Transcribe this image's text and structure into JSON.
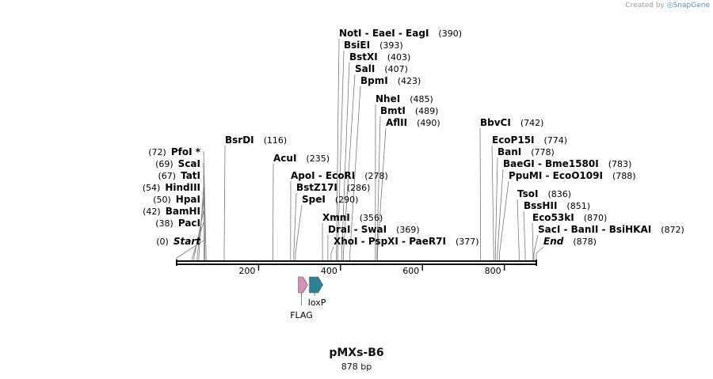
{
  "credit": {
    "prefix": "Created by",
    "brand": "SnapGene"
  },
  "plasmid": {
    "name": "pMXs-B6",
    "size_label": "878 bp",
    "length": 878
  },
  "ticks": [
    {
      "value": 200,
      "label": "200"
    },
    {
      "value": 400,
      "label": "400"
    },
    {
      "value": 600,
      "label": "600"
    },
    {
      "value": 800,
      "label": "800"
    }
  ],
  "sites": [
    {
      "label": "NotI  -  EaeI  -  EagI",
      "position": 390,
      "pos_label": "(390)",
      "italic": false
    },
    {
      "label": "BsiEI",
      "position": 393,
      "pos_label": "(393)",
      "italic": false
    },
    {
      "label": "BstXI",
      "position": 403,
      "pos_label": "(403)",
      "italic": false
    },
    {
      "label": "SalI",
      "position": 407,
      "pos_label": "(407)",
      "italic": false
    },
    {
      "label": "BpmI",
      "position": 423,
      "pos_label": "(423)",
      "italic": false
    },
    {
      "label": "NheI",
      "position": 485,
      "pos_label": "(485)",
      "italic": false
    },
    {
      "label": "BmtI",
      "position": 489,
      "pos_label": "(489)",
      "italic": false
    },
    {
      "label": "AflII",
      "position": 490,
      "pos_label": "(490)",
      "italic": false
    },
    {
      "label": "BsrDI",
      "position": 116,
      "pos_label": "(116)",
      "italic": false
    },
    {
      "label": "AcuI",
      "position": 235,
      "pos_label": "(235)",
      "italic": false
    },
    {
      "label": "ApoI  -  EcoRI",
      "position": 278,
      "pos_label": "(278)",
      "italic": false
    },
    {
      "label": "BstZ17I",
      "position": 286,
      "pos_label": "(286)",
      "italic": false
    },
    {
      "label": "SpeI",
      "position": 290,
      "pos_label": "(290)",
      "italic": false
    },
    {
      "label": "XmnI",
      "position": 356,
      "pos_label": "(356)",
      "italic": false
    },
    {
      "label": "DraI  -  SwaI",
      "position": 369,
      "pos_label": "(369)",
      "italic": false
    },
    {
      "label": "XhoI  -  PspXI  -  PaeR7I",
      "position": 377,
      "pos_label": "(377)",
      "italic": false
    },
    {
      "label": "PfoI *",
      "position": 72,
      "pos_label": "(72)",
      "italic": false
    },
    {
      "label": "ScaI",
      "position": 69,
      "pos_label": "(69)",
      "italic": false
    },
    {
      "label": "TatI",
      "position": 67,
      "pos_label": "(67)",
      "italic": false
    },
    {
      "label": "HindIII",
      "position": 54,
      "pos_label": "(54)",
      "italic": false
    },
    {
      "label": "HpaI",
      "position": 50,
      "pos_label": "(50)",
      "italic": false
    },
    {
      "label": "BamHI",
      "position": 42,
      "pos_label": "(42)",
      "italic": false
    },
    {
      "label": "PacI",
      "position": 38,
      "pos_label": "(38)",
      "italic": false
    },
    {
      "label": "Start",
      "position": 0,
      "pos_label": "(0)",
      "italic": true
    },
    {
      "label": "BbvCI",
      "position": 742,
      "pos_label": "(742)",
      "italic": false
    },
    {
      "label": "EcoP15I",
      "position": 774,
      "pos_label": "(774)",
      "italic": false
    },
    {
      "label": "BanI",
      "position": 778,
      "pos_label": "(778)",
      "italic": false
    },
    {
      "label": "BaeGI  -  Bme1580I",
      "position": 783,
      "pos_label": "(783)",
      "italic": false
    },
    {
      "label": "PpuMI  -  EcoO109I",
      "position": 788,
      "pos_label": "(788)",
      "italic": false
    },
    {
      "label": "TsoI",
      "position": 836,
      "pos_label": "(836)",
      "italic": false
    },
    {
      "label": "BssHII",
      "position": 851,
      "pos_label": "(851)",
      "italic": false
    },
    {
      "label": "Eco53kI",
      "position": 870,
      "pos_label": "(870)",
      "italic": false
    },
    {
      "label": "SacI  -  BanII  -  BsiHKAI",
      "position": 872,
      "pos_label": "(872)",
      "italic": false
    },
    {
      "label": "End",
      "position": 878,
      "pos_label": "(878)",
      "italic": true
    }
  ],
  "features": [
    {
      "name": "FLAG",
      "start": 297,
      "end": 320,
      "color": "#d592b8"
    },
    {
      "name": "loxP",
      "start": 324,
      "end": 357,
      "color": "#2b8196"
    }
  ]
}
